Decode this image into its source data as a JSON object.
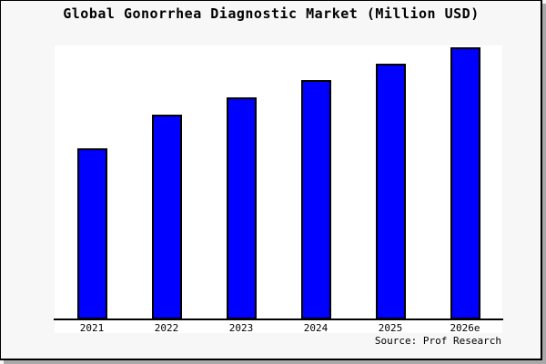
{
  "title": "Global Gonorrhea Diagnostic Market (Million USD)",
  "source_credit": "Source: Prof Research",
  "colors": {
    "bar_fill": "#0000ff",
    "bar_outline": "#000000",
    "plot_background": "#ffffff",
    "page_background": "#f7f7f7",
    "axis_line": "#000000",
    "frame_border": "#000000",
    "frame_shadow": "#a9a9a9",
    "text": "#000000"
  },
  "chart_data": {
    "type": "bar",
    "title": "Global Gonorrhea Diagnostic Market (Million USD)",
    "categories": [
      "2021",
      "2022",
      "2023",
      "2024",
      "2025",
      "2026e"
    ],
    "values": [
      188,
      225,
      244,
      263,
      281,
      299
    ],
    "xlabel": "",
    "ylabel": "",
    "ylim": [
      0,
      300
    ],
    "y_axis_ticks_visible": false,
    "gridlines": false,
    "legend": "none",
    "value_scale_note": "no numeric y-axis is rendered in the image; values are relative bar heights (plot height = 300)"
  }
}
